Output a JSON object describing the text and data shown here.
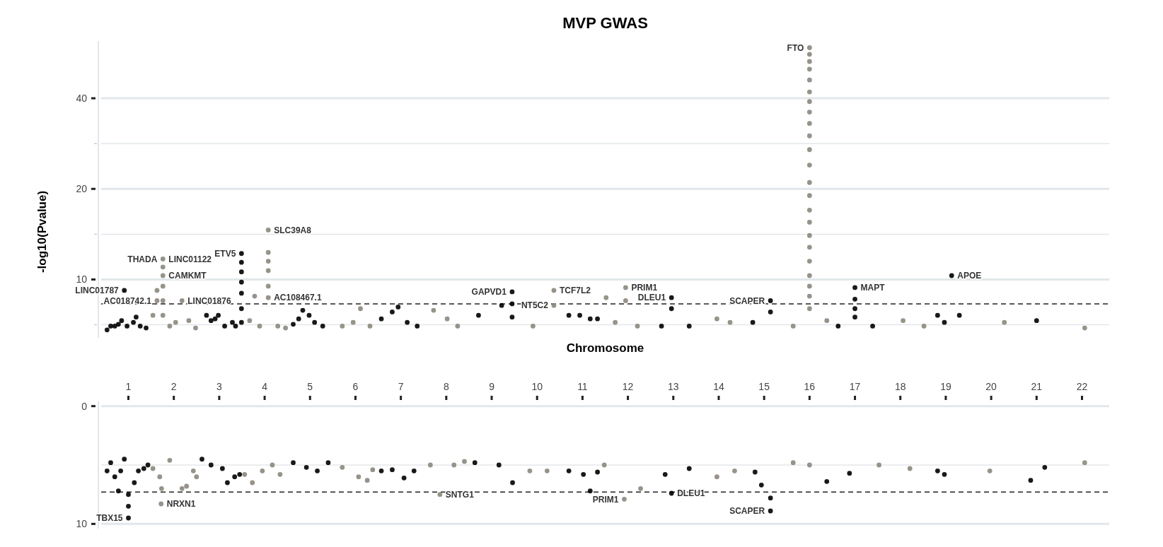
{
  "chart_data": [
    {
      "type": "scatter",
      "title": "MVP GWAS",
      "ylabel": "-log10(Pvalue)",
      "xlabel": "Chromosome",
      "log": "y",
      "grid": "y",
      "tick_labels": "y",
      "marker": "circle",
      "xlim": [
        0.4,
        22.6
      ],
      "ylim": [
        6.4,
        62
      ],
      "yticks": [
        {
          "value": 7.07,
          "label": null
        },
        10,
        {
          "value": 14.14,
          "label": null
        },
        20,
        {
          "value": 28.28,
          "label": null
        },
        40
      ],
      "ref_lines": [
        {
          "axis": "y",
          "value": 8.3,
          "line_style": "dashed",
          "color": "#222222"
        }
      ],
      "series": [
        {
          "color": "#000000",
          "x": [
            0.53,
            0.61,
            0.7,
            0.78,
            0.85,
            0.91,
            0.97,
            1.11,
            1.17,
            1.26,
            1.39,
            2.72,
            2.82,
            2.91,
            2.98,
            3.12,
            3.29,
            3.36,
            3.49,
            3.49,
            3.49,
            3.49,
            3.49,
            3.49,
            3.49,
            4.63,
            4.75,
            4.84,
            4.98,
            5.1,
            5.28,
            6.57,
            6.81,
            6.94,
            7.14,
            7.36,
            8.71,
            9.22,
            9.45,
            9.45,
            9.45,
            10.7,
            10.94,
            11.17,
            11.33,
            12.74,
            12.96,
            12.96,
            13.35,
            14.75,
            15.14,
            15.14,
            16.63,
            17.0,
            17.0,
            17.0,
            17.0,
            17.39,
            18.82,
            18.97,
            19.13,
            19.3,
            21.0
          ],
          "values": [
            6.8,
            7.0,
            7.0,
            7.1,
            7.3,
            9.2,
            7.0,
            7.2,
            7.5,
            7.0,
            6.9,
            7.6,
            7.3,
            7.4,
            7.6,
            7.0,
            7.2,
            7.0,
            12.2,
            11.4,
            10.6,
            9.8,
            9.0,
            8.0,
            7.2,
            7.1,
            7.4,
            7.9,
            7.6,
            7.2,
            7.0,
            7.4,
            7.8,
            8.1,
            7.2,
            7.0,
            7.6,
            8.2,
            9.1,
            8.3,
            7.5,
            7.6,
            7.6,
            7.4,
            7.4,
            7.0,
            8.7,
            8.0,
            7.0,
            7.2,
            8.5,
            7.8,
            7.0,
            9.4,
            8.6,
            8.0,
            7.5,
            7.0,
            7.6,
            7.2,
            10.3,
            7.6,
            7.3
          ]
        },
        {
          "color": "#8c877d",
          "x": [
            1.54,
            1.63,
            1.63,
            1.76,
            1.76,
            1.76,
            1.76,
            1.76,
            1.76,
            1.91,
            2.04,
            2.18,
            2.33,
            2.48,
            3.67,
            3.78,
            3.89,
            4.08,
            4.08,
            4.08,
            4.08,
            4.08,
            4.08,
            4.29,
            4.46,
            5.71,
            5.95,
            6.11,
            6.32,
            7.72,
            8.02,
            8.25,
            9.91,
            10.37,
            10.37,
            11.52,
            11.72,
            11.95,
            11.95,
            12.21,
            13.96,
            14.25,
            15.64,
            16.0,
            16.0,
            16.0,
            16.0,
            16.0,
            16.0,
            16.0,
            16.0,
            16.0,
            16.0,
            16.0,
            16.0,
            16.0,
            16.0,
            16.0,
            16.0,
            16.0,
            16.0,
            16.0,
            16.0,
            16.0,
            16.0,
            16.0,
            16.38,
            18.06,
            18.52,
            20.29,
            22.06
          ],
          "values": [
            7.6,
            9.2,
            8.5,
            11.7,
            11.0,
            10.3,
            9.5,
            8.5,
            7.6,
            7.0,
            7.2,
            8.5,
            7.3,
            6.9,
            7.3,
            8.8,
            7.0,
            14.6,
            12.3,
            11.5,
            10.7,
            9.5,
            8.7,
            7.0,
            6.9,
            7.0,
            7.2,
            8.0,
            7.0,
            7.9,
            7.4,
            7.0,
            7.0,
            9.2,
            8.2,
            8.7,
            7.2,
            9.4,
            8.5,
            7.0,
            7.4,
            7.2,
            7.0,
            58.9,
            56,
            53,
            50,
            46,
            42,
            39,
            36,
            33,
            30,
            27,
            24,
            21,
            19,
            17,
            15.5,
            14,
            12.8,
            11.5,
            10.3,
            9.5,
            8.8,
            8.0,
            7.3,
            7.3,
            7.0,
            7.2,
            6.9
          ]
        }
      ],
      "annotations": [
        {
          "text": "LINC01122",
          "x": 1.76,
          "y": 11.7
        },
        {
          "text": "THADA",
          "x": 1.76,
          "y": 11.7
        },
        {
          "text": "CAMKMT",
          "x": 1.76,
          "y": 10.3
        },
        {
          "text": "LINC01787",
          "x": 0.91,
          "y": 9.2
        },
        {
          "text": "LINC01876",
          "x": 2.18,
          "y": 8.5
        },
        {
          "text": "AC018742.1",
          "x": 1.63,
          "y": 8.5
        },
        {
          "text": "SLC39A8",
          "x": 4.08,
          "y": 14.6
        },
        {
          "text": "ETV5",
          "x": 3.49,
          "y": 12.2
        },
        {
          "text": "AC108467.1",
          "x": 4.08,
          "y": 8.7
        },
        {
          "text": "GAPVD1",
          "x": 9.45,
          "y": 9.1
        },
        {
          "text": "TCF7L2",
          "x": 10.37,
          "y": 9.2
        },
        {
          "text": "NT5C2",
          "x": 10.37,
          "y": 8.2
        },
        {
          "text": "PRIM1",
          "x": 11.95,
          "y": 9.4
        },
        {
          "text": "DLEU1",
          "x": 12.96,
          "y": 8.7
        },
        {
          "text": "APOE",
          "x": 19.13,
          "y": 10.3
        },
        {
          "text": "SCAPER",
          "x": 15.14,
          "y": 8.5
        },
        {
          "text": "MAPT",
          "x": 17.0,
          "y": 9.4
        },
        {
          "text": "FTO",
          "x": 16.0,
          "y": 58.9
        }
      ]
    },
    {
      "type": "scatter",
      "grid": "y",
      "marker": "circle",
      "xlim": [
        0.4,
        22.6
      ],
      "xticks": [
        1,
        2,
        3,
        4,
        5,
        6,
        7,
        8,
        9,
        10,
        11,
        12,
        13,
        14,
        15,
        16,
        17,
        18,
        19,
        20,
        21,
        22
      ],
      "ylim": [
        10.4,
        -0.4
      ],
      "yticks": [
        0,
        10
      ],
      "ref_lines": [
        {
          "axis": "y",
          "value": 5,
          "line_style": "solid",
          "color": "#e3e7ea"
        },
        {
          "axis": "y",
          "value": 7.3,
          "line_style": "dashed",
          "color": "#222222"
        }
      ],
      "series": [
        {
          "color": "#000000",
          "x": [
            0.53,
            0.61,
            0.7,
            0.78,
            0.83,
            0.91,
            1.0,
            1.0,
            1.0,
            1.13,
            1.22,
            1.34,
            1.43,
            2.62,
            2.82,
            3.07,
            3.18,
            3.34,
            3.45,
            4.63,
            4.92,
            5.16,
            5.4,
            6.57,
            6.81,
            7.07,
            7.29,
            8.63,
            9.16,
            9.46,
            10.7,
            11.02,
            11.17,
            11.33,
            12.82,
            12.96,
            13.35,
            14.8,
            14.94,
            15.14,
            15.14,
            16.38,
            16.88,
            18.82,
            18.97,
            20.87,
            21.18
          ],
          "values": [
            5.5,
            4.8,
            6.0,
            7.2,
            5.5,
            4.5,
            9.5,
            8.5,
            7.5,
            6.5,
            5.5,
            5.3,
            5.0,
            4.5,
            5.0,
            5.3,
            6.5,
            6.0,
            5.8,
            4.8,
            5.2,
            5.5,
            4.8,
            5.5,
            5.4,
            6.1,
            5.5,
            4.8,
            5.0,
            6.5,
            5.5,
            5.8,
            7.2,
            5.6,
            5.8,
            7.4,
            5.3,
            5.6,
            6.7,
            8.9,
            7.8,
            6.4,
            5.7,
            5.5,
            5.8,
            6.3,
            5.2
          ]
        },
        {
          "color": "#8c877d",
          "x": [
            1.54,
            1.69,
            1.73,
            1.72,
            1.91,
            2.18,
            2.28,
            2.43,
            2.5,
            3.56,
            3.73,
            3.95,
            4.17,
            4.34,
            5.71,
            6.07,
            6.26,
            6.38,
            7.65,
            7.86,
            8.17,
            8.4,
            9.84,
            10.22,
            11.48,
            11.92,
            12.28,
            13.96,
            14.35,
            15.64,
            16.0,
            17.53,
            18.21,
            19.97,
            22.06
          ],
          "values": [
            5.3,
            6.0,
            7.0,
            8.3,
            4.6,
            7.0,
            6.8,
            5.5,
            6.0,
            5.8,
            6.5,
            5.5,
            5.0,
            5.8,
            5.2,
            6.0,
            6.3,
            5.4,
            5.0,
            7.5,
            5.0,
            4.7,
            5.5,
            5.5,
            5.0,
            7.9,
            7.0,
            6.0,
            5.5,
            4.8,
            5.0,
            5.0,
            5.3,
            5.5,
            4.8
          ]
        }
      ],
      "annotations": [
        {
          "text": "NRXN1",
          "x": 1.72,
          "y": 8.3
        },
        {
          "text": "TBX15",
          "x": 1.0,
          "y": 9.5
        },
        {
          "text": "SNTG1",
          "x": 7.86,
          "y": 7.5
        },
        {
          "text": "PRIM1",
          "x": 11.92,
          "y": 7.9
        },
        {
          "text": "DLEU1",
          "x": 12.96,
          "y": 7.4
        },
        {
          "text": "SCAPER",
          "x": 15.14,
          "y": 8.9
        }
      ]
    }
  ]
}
